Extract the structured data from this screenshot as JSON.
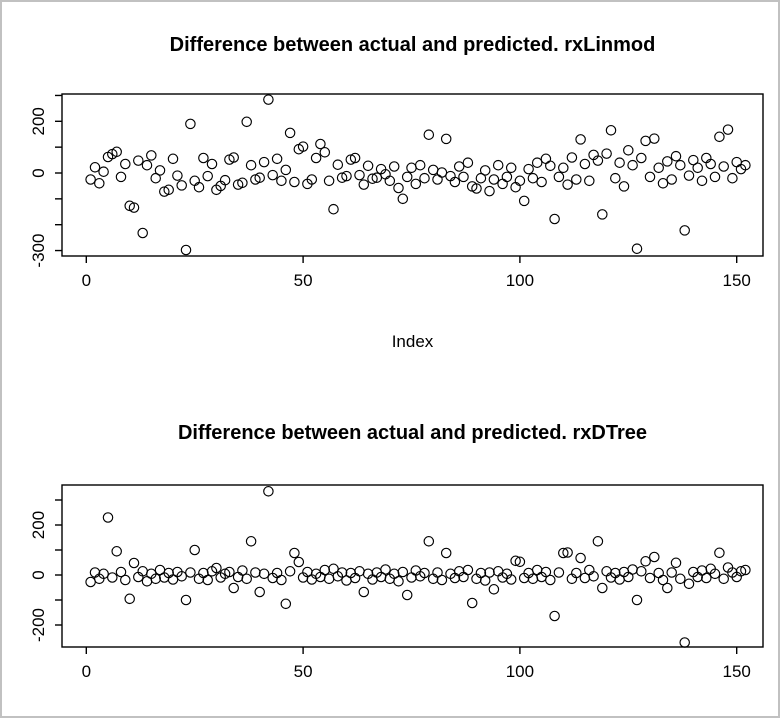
{
  "window": {
    "background": "#ffffff",
    "border_color": "#c1c1c1",
    "point_color": "#000000",
    "axis_color": "#000000"
  },
  "chart_data": [
    {
      "type": "scatter",
      "title": "Difference between actual and predicted. rxLinmod",
      "xlabel": "Index",
      "ylabel": "",
      "marker": "open-circle",
      "legend": "none",
      "grid": false,
      "x_description": "index 1..152",
      "xlim": [
        -6,
        158
      ],
      "ylim": [
        -320,
        308
      ],
      "x_ticks": [
        0,
        50,
        100,
        150
      ],
      "x_tick_labels": [
        "0",
        "50",
        "100",
        "150"
      ],
      "y_ticks": [
        300,
        200,
        100,
        0,
        -100,
        -200,
        -300
      ],
      "y_tick_labels": [
        "",
        "200",
        "",
        "0",
        "",
        "",
        "-300"
      ],
      "values": [
        -25,
        22,
        -40,
        5,
        62,
        73,
        82,
        -15,
        35,
        -127,
        -134,
        48,
        -232,
        30,
        68,
        -20,
        10,
        -72,
        -65,
        55,
        -10,
        -48,
        -298,
        190,
        -30,
        -55,
        58,
        -12,
        35,
        -65,
        -50,
        -28,
        52,
        60,
        -45,
        -38,
        198,
        30,
        -25,
        -18,
        42,
        284,
        -8,
        55,
        -30,
        12,
        155,
        -35,
        92,
        102,
        -42,
        -25,
        58,
        112,
        80,
        -30,
        -140,
        32,
        -18,
        -12,
        52,
        58,
        -8,
        -45,
        28,
        -22,
        -18,
        15,
        -5,
        -30,
        25,
        -58,
        -100,
        -15,
        20,
        -42,
        30,
        -20,
        148,
        12,
        -25,
        2,
        132,
        -12,
        -35,
        25,
        -15,
        40,
        -52,
        -60,
        -20,
        10,
        -70,
        -25,
        30,
        -42,
        -15,
        20,
        -55,
        -30,
        -108,
        15,
        -20,
        40,
        -35,
        55,
        28,
        -178,
        -15,
        20,
        -45,
        60,
        -25,
        130,
        35,
        -30,
        70,
        48,
        -160,
        75,
        165,
        -20,
        40,
        -52,
        88,
        30,
        -293,
        58,
        124,
        -15,
        133,
        20,
        -40,
        45,
        -25,
        65,
        30,
        -222,
        -10,
        50,
        20,
        -30,
        58,
        35,
        -15,
        140,
        25,
        168,
        -20,
        42,
        15,
        30
      ]
    },
    {
      "type": "scatter",
      "title": "Difference between actual and predicted. rxDTree",
      "xlabel": "",
      "ylabel": "",
      "marker": "open-circle",
      "legend": "none",
      "grid": false,
      "x_description": "index 1..152",
      "xlim": [
        -6,
        158
      ],
      "ylim": [
        -288,
        360
      ],
      "x_ticks": [
        0,
        50,
        100,
        150
      ],
      "x_tick_labels": [
        "0",
        "50",
        "100",
        "150"
      ],
      "y_ticks": [
        300,
        200,
        100,
        0,
        -100,
        -200
      ],
      "y_tick_labels": [
        "",
        "200",
        "",
        "0",
        "",
        "-200"
      ],
      "values": [
        -28,
        10,
        -15,
        5,
        230,
        -10,
        95,
        12,
        -20,
        -95,
        48,
        -8,
        15,
        -25,
        5,
        -15,
        20,
        -10,
        8,
        -18,
        12,
        -5,
        -100,
        10,
        100,
        -15,
        8,
        -20,
        15,
        28,
        -10,
        5,
        12,
        -52,
        -8,
        18,
        -15,
        135,
        10,
        -68,
        5,
        335,
        -12,
        8,
        -20,
        -115,
        15,
        88,
        52,
        -10,
        12,
        -18,
        5,
        -8,
        20,
        -15,
        25,
        -5,
        10,
        -22,
        8,
        -12,
        15,
        -68,
        5,
        -18,
        10,
        -8,
        22,
        -15,
        5,
        -25,
        12,
        -80,
        -10,
        18,
        -5,
        8,
        135,
        -15,
        10,
        -20,
        88,
        5,
        -12,
        15,
        -8,
        20,
        -112,
        -15,
        8,
        -22,
        10,
        -57,
        15,
        -10,
        5,
        -18,
        57,
        53,
        -12,
        8,
        -15,
        20,
        -8,
        12,
        -20,
        -164,
        10,
        88,
        90,
        -15,
        8,
        68,
        -12,
        20,
        -5,
        135,
        -52,
        15,
        -10,
        8,
        -18,
        12,
        -8,
        22,
        -100,
        15,
        55,
        -12,
        72,
        8,
        -20,
        -52,
        10,
        49,
        -15,
        -270,
        -35,
        12,
        -8,
        18,
        -12,
        25,
        5,
        89,
        -15,
        30,
        10,
        -8,
        15,
        20
      ]
    }
  ]
}
